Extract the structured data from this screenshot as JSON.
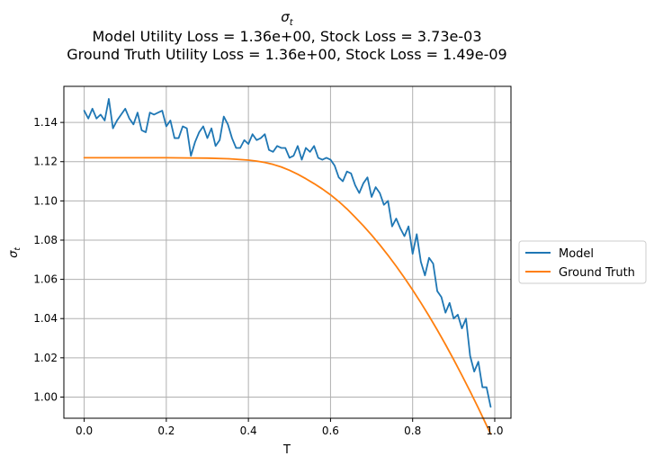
{
  "chart_data": {
    "type": "line",
    "title_symbol": "σ",
    "title_subscript": "t",
    "title_lines": [
      "Model Utility Loss = 1.36e+00, Stock Loss = 3.73e-03",
      "Ground Truth Utility Loss = 1.36e+00, Stock Loss = 1.49e-09"
    ],
    "xlabel": "T",
    "ylabel_symbol": "σ",
    "ylabel_subscript": "t",
    "xlim": [
      -0.0495,
      1.0395
    ],
    "ylim": [
      0.9892,
      1.1584
    ],
    "xticks": [
      0.0,
      0.2,
      0.4,
      0.6,
      0.8,
      1.0
    ],
    "xtick_labels": [
      "0.0",
      "0.2",
      "0.4",
      "0.6",
      "0.8",
      "1.0"
    ],
    "yticks": [
      1.0,
      1.02,
      1.04,
      1.06,
      1.08,
      1.1,
      1.12,
      1.14
    ],
    "ytick_labels": [
      "1.00",
      "1.02",
      "1.04",
      "1.06",
      "1.08",
      "1.10",
      "1.12",
      "1.14"
    ],
    "grid": true,
    "legend_position": "outside-right",
    "series": [
      {
        "name": "Model",
        "color": "#1f77b4",
        "x": [
          0.0,
          0.01,
          0.02,
          0.03,
          0.04,
          0.05,
          0.06,
          0.07,
          0.08,
          0.09,
          0.1,
          0.11,
          0.12,
          0.13,
          0.14,
          0.15,
          0.16,
          0.17,
          0.18,
          0.19,
          0.2,
          0.21,
          0.22,
          0.23,
          0.24,
          0.25,
          0.26,
          0.27,
          0.28,
          0.29,
          0.3,
          0.31,
          0.32,
          0.33,
          0.34,
          0.35,
          0.36,
          0.37,
          0.38,
          0.39,
          0.4,
          0.41,
          0.42,
          0.43,
          0.44,
          0.45,
          0.46,
          0.47,
          0.48,
          0.49,
          0.5,
          0.51,
          0.52,
          0.53,
          0.54,
          0.55,
          0.56,
          0.57,
          0.58,
          0.59,
          0.6,
          0.61,
          0.62,
          0.63,
          0.64,
          0.65,
          0.66,
          0.67,
          0.68,
          0.69,
          0.7,
          0.71,
          0.72,
          0.73,
          0.74,
          0.75,
          0.76,
          0.77,
          0.78,
          0.79,
          0.8,
          0.81,
          0.82,
          0.83,
          0.84,
          0.85,
          0.86,
          0.87,
          0.88,
          0.89,
          0.9,
          0.91,
          0.92,
          0.93,
          0.94,
          0.95,
          0.96,
          0.97,
          0.98,
          0.99
        ],
        "y": [
          1.146,
          1.142,
          1.147,
          1.142,
          1.144,
          1.141,
          1.152,
          1.137,
          1.141,
          1.144,
          1.147,
          1.142,
          1.139,
          1.145,
          1.136,
          1.135,
          1.145,
          1.144,
          1.145,
          1.146,
          1.138,
          1.141,
          1.132,
          1.132,
          1.138,
          1.137,
          1.123,
          1.13,
          1.135,
          1.138,
          1.132,
          1.137,
          1.128,
          1.131,
          1.143,
          1.139,
          1.132,
          1.127,
          1.127,
          1.131,
          1.129,
          1.134,
          1.131,
          1.132,
          1.134,
          1.126,
          1.125,
          1.128,
          1.127,
          1.127,
          1.122,
          1.123,
          1.128,
          1.121,
          1.127,
          1.125,
          1.128,
          1.122,
          1.121,
          1.122,
          1.121,
          1.118,
          1.112,
          1.11,
          1.115,
          1.114,
          1.108,
          1.104,
          1.109,
          1.112,
          1.102,
          1.107,
          1.104,
          1.098,
          1.1,
          1.087,
          1.091,
          1.086,
          1.082,
          1.087,
          1.073,
          1.083,
          1.069,
          1.062,
          1.071,
          1.068,
          1.054,
          1.051,
          1.043,
          1.048,
          1.04,
          1.042,
          1.035,
          1.04,
          1.021,
          1.013,
          1.018,
          1.005,
          1.005,
          0.995
        ]
      },
      {
        "name": "Ground Truth",
        "color": "#ff7f0e",
        "x": [
          0.0,
          0.05,
          0.1,
          0.15,
          0.2,
          0.25,
          0.3,
          0.35,
          0.4,
          0.42,
          0.44,
          0.46,
          0.48,
          0.5,
          0.52,
          0.54,
          0.56,
          0.58,
          0.6,
          0.62,
          0.64,
          0.66,
          0.68,
          0.7,
          0.72,
          0.74,
          0.76,
          0.78,
          0.8,
          0.82,
          0.84,
          0.86,
          0.88,
          0.9,
          0.92,
          0.94,
          0.96,
          0.98,
          0.99
        ],
        "y": [
          1.122,
          1.122,
          1.122,
          1.122,
          1.122,
          1.1219,
          1.1218,
          1.1215,
          1.1208,
          1.1203,
          1.1196,
          1.1186,
          1.1173,
          1.1156,
          1.1136,
          1.1113,
          1.1088,
          1.1061,
          1.1031,
          1.0997,
          1.0959,
          1.0917,
          1.0873,
          1.0826,
          1.0776,
          1.0723,
          1.0667,
          1.0608,
          1.0546,
          1.0481,
          1.0413,
          1.0342,
          1.0268,
          1.0191,
          1.0111,
          1.0029,
          0.9944,
          0.9856,
          0.9812
        ]
      }
    ]
  }
}
